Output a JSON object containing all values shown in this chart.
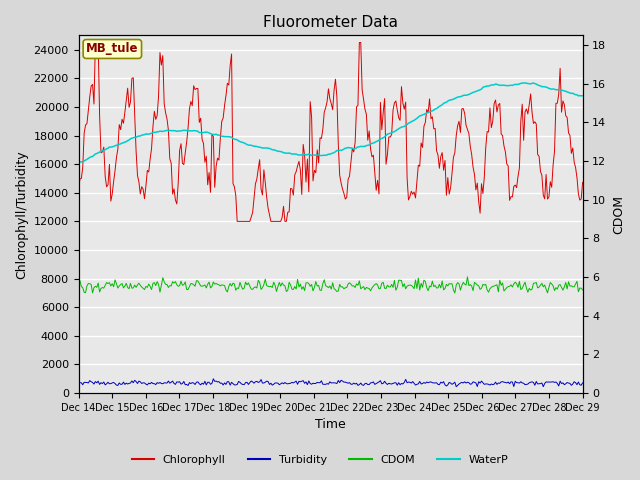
{
  "title": "Fluorometer Data",
  "xlabel": "Time",
  "ylabel_left": "Chlorophyll/Turbidity",
  "ylabel_right": "CDOM",
  "station_label": "MB_tule",
  "ylim_left": [
    0,
    25000
  ],
  "ylim_right": [
    0,
    18.5
  ],
  "yticks_left": [
    0,
    2000,
    4000,
    6000,
    8000,
    10000,
    12000,
    14000,
    16000,
    18000,
    20000,
    22000,
    24000
  ],
  "yticks_right": [
    0,
    2,
    4,
    6,
    8,
    10,
    12,
    14,
    16,
    18
  ],
  "x_tick_labels": [
    "Dec 14",
    "Dec 15",
    "Dec 16",
    "Dec 17",
    "Dec 18",
    "Dec 19",
    "Dec 20",
    "Dec 21",
    "Dec 22",
    "Dec 23",
    "Dec 24",
    "Dec 25",
    "Dec 26",
    "Dec 27",
    "Dec 28",
    "Dec 29"
  ],
  "background_color": "#d8d8d8",
  "plot_bg_color": "#e8e8e8",
  "chlorophyll_color": "#dd0000",
  "turbidity_color": "#0000bb",
  "cdom_color": "#00bb00",
  "waterp_color": "#00cccc",
  "legend_entries": [
    "Chlorophyll",
    "Turbidity",
    "CDOM",
    "WaterP"
  ],
  "title_fontsize": 11,
  "label_fontsize": 9,
  "tick_fontsize": 8
}
